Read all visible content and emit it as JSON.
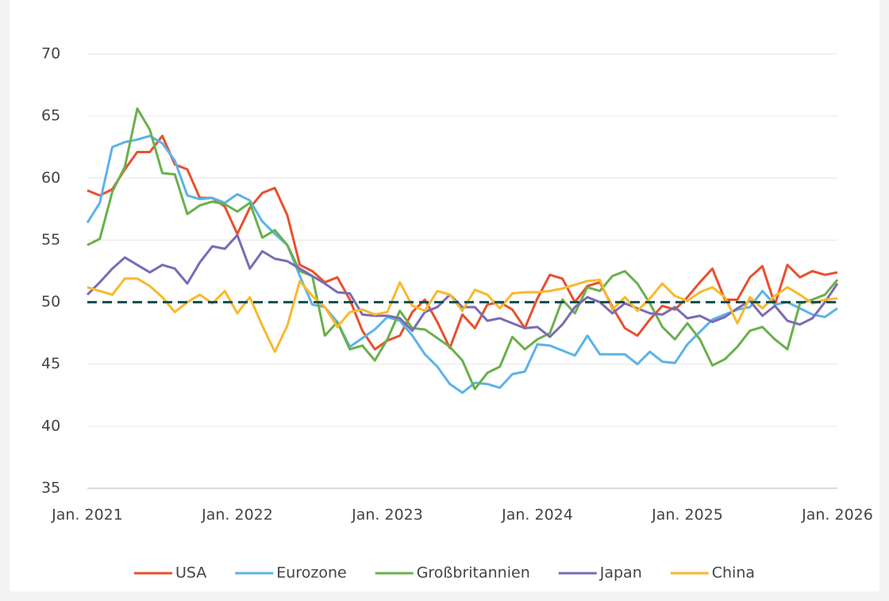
{
  "chart_data": {
    "type": "line",
    "categories": [
      "Jan. 2021",
      null,
      null,
      null,
      null,
      null,
      null,
      null,
      null,
      null,
      null,
      null,
      "Jan. 2022",
      null,
      null,
      null,
      null,
      null,
      null,
      null,
      null,
      null,
      null,
      null,
      "Jan. 2023",
      null,
      null,
      null,
      null,
      null,
      null,
      null,
      null,
      null,
      null,
      null,
      "Jan. 2024",
      null,
      null,
      null,
      null,
      null,
      null,
      null,
      null,
      null,
      null,
      null,
      "Jan. 2025",
      null,
      null,
      null,
      null,
      null,
      null,
      null,
      null,
      null,
      null,
      null,
      "Jan. 2026"
    ],
    "series": [
      {
        "name": "USA",
        "color": "#e8502f",
        "values": [
          59.0,
          58.6,
          59.1,
          60.7,
          62.1,
          62.1,
          63.4,
          61.1,
          60.7,
          58.4,
          58.4,
          57.7,
          55.5,
          57.6,
          58.8,
          59.2,
          57.0,
          53.0,
          52.5,
          51.6,
          52.0,
          50.2,
          47.7,
          46.2,
          46.9,
          47.3,
          49.2,
          50.2,
          48.4,
          46.3,
          49.0,
          47.9,
          49.8,
          50.0,
          49.4,
          47.9,
          50.3,
          52.2,
          51.9,
          50.0,
          51.3,
          51.6,
          49.6,
          47.9,
          47.3,
          48.6,
          49.7,
          49.4,
          50.4,
          51.6,
          52.7,
          50.2,
          50.2,
          52.0,
          52.9,
          49.8,
          53.0,
          52.0,
          52.5,
          52.2,
          52.4
        ]
      },
      {
        "name": "Eurozone",
        "color": "#5cb3e6",
        "values": [
          56.4,
          58.0,
          62.5,
          62.9,
          63.1,
          63.4,
          62.8,
          61.4,
          58.6,
          58.3,
          58.4,
          58.0,
          58.7,
          58.2,
          56.5,
          55.5,
          54.6,
          52.1,
          49.8,
          49.6,
          48.4,
          46.4,
          47.1,
          47.8,
          48.8,
          48.5,
          47.3,
          45.8,
          44.8,
          43.4,
          42.7,
          43.5,
          43.4,
          43.1,
          44.2,
          44.4,
          46.6,
          46.5,
          46.1,
          45.7,
          47.3,
          45.8,
          45.8,
          45.8,
          45.0,
          46.0,
          45.2,
          45.1,
          46.6,
          47.6,
          48.6,
          49.0,
          49.4,
          49.6,
          50.9,
          49.8,
          50.0,
          49.5,
          49.0,
          48.8,
          49.5
        ]
      },
      {
        "name": "Großbritannien",
        "color": "#6ab04c",
        "values": [
          54.6,
          55.1,
          58.9,
          60.9,
          65.6,
          63.9,
          60.4,
          60.3,
          57.1,
          57.8,
          58.1,
          57.9,
          57.3,
          58.0,
          55.2,
          55.8,
          54.6,
          52.5,
          52.1,
          47.3,
          48.4,
          46.2,
          46.5,
          45.3,
          47.0,
          49.3,
          47.9,
          47.8,
          47.1,
          46.4,
          45.3,
          43.0,
          44.3,
          44.8,
          47.2,
          46.2,
          47.0,
          47.5,
          50.2,
          49.1,
          51.2,
          50.9,
          52.1,
          52.5,
          51.5,
          49.9,
          48.0,
          47.0,
          48.3,
          47.0,
          44.9,
          45.4,
          46.4,
          47.7,
          48.0,
          47.0,
          46.2,
          49.9,
          50.2,
          50.6,
          51.8
        ]
      },
      {
        "name": "Japan",
        "color": "#7b6bb5",
        "values": [
          50.6,
          51.6,
          52.7,
          53.6,
          53.0,
          52.4,
          53.0,
          52.7,
          51.5,
          53.2,
          54.5,
          54.3,
          55.4,
          52.7,
          54.1,
          53.5,
          53.3,
          52.7,
          52.1,
          51.5,
          50.8,
          50.7,
          49.0,
          48.9,
          48.9,
          48.7,
          47.7,
          49.2,
          49.6,
          50.6,
          49.6,
          49.6,
          48.5,
          48.7,
          48.3,
          47.9,
          48.0,
          47.2,
          48.2,
          49.6,
          50.4,
          50.0,
          49.1,
          49.9,
          49.5,
          49.1,
          49.0,
          49.6,
          48.7,
          48.9,
          48.4,
          48.8,
          49.5,
          50.1,
          48.9,
          49.7,
          48.5,
          48.2,
          48.7,
          50.0,
          51.5
        ]
      },
      {
        "name": "China",
        "color": "#f9b92b",
        "values": [
          51.2,
          50.9,
          50.6,
          51.9,
          51.9,
          51.3,
          50.4,
          49.2,
          50.0,
          50.6,
          49.9,
          50.9,
          49.1,
          50.4,
          48.1,
          46.0,
          48.1,
          51.7,
          50.5,
          49.6,
          48.0,
          49.2,
          49.4,
          49.0,
          49.2,
          51.6,
          49.7,
          49.3,
          50.9,
          50.6,
          49.3,
          51.0,
          50.6,
          49.5,
          50.7,
          50.8,
          50.8,
          50.9,
          51.1,
          51.4,
          51.7,
          51.8,
          49.4,
          50.4,
          49.3,
          50.3,
          51.5,
          50.5,
          50.1,
          50.8,
          51.2,
          50.4,
          48.3,
          50.4,
          49.5,
          50.5,
          51.2,
          50.6,
          49.9,
          50.2,
          50.3
        ]
      }
    ],
    "reference_line": {
      "value": 50,
      "color": "#0e4d4d"
    },
    "ylim": [
      35,
      70
    ],
    "yticks": [
      35,
      40,
      45,
      50,
      55,
      60,
      65,
      70
    ],
    "grid": true,
    "legend": "bottom"
  }
}
